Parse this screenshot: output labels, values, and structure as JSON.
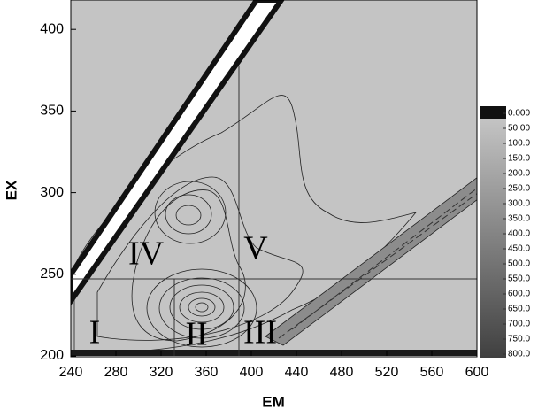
{
  "chart_data": {
    "type": "contour",
    "x_label": "EM",
    "y_label": "EX",
    "xlim": [
      240,
      600
    ],
    "ylim": [
      200,
      418
    ],
    "xticks": [
      240,
      280,
      320,
      360,
      400,
      440,
      480,
      520,
      560,
      600
    ],
    "yticks": [
      200,
      250,
      300,
      350,
      400
    ],
    "colorbar": {
      "colors": [
        "#111111",
        "#c4c4c4",
        "#404040"
      ],
      "ticks": [
        {
          "value": 0,
          "label": "0.000"
        },
        {
          "value": 50,
          "label": "50.00"
        },
        {
          "value": 100,
          "label": "100.0"
        },
        {
          "value": 150,
          "label": "150.0"
        },
        {
          "value": 200,
          "label": "200.0"
        },
        {
          "value": 250,
          "label": "250.0"
        },
        {
          "value": 300,
          "label": "300.0"
        },
        {
          "value": 350,
          "label": "350.0"
        },
        {
          "value": 400,
          "label": "400.0"
        },
        {
          "value": 450,
          "label": "450.0"
        },
        {
          "value": 500,
          "label": "500.0"
        },
        {
          "value": 550,
          "label": "550.0"
        },
        {
          "value": 600,
          "label": "600.0"
        },
        {
          "value": 650,
          "label": "650.0"
        },
        {
          "value": 700,
          "label": "700.0"
        },
        {
          "value": 750,
          "label": "750.0"
        },
        {
          "value": 800,
          "label": "800.0"
        }
      ]
    },
    "annotations": [
      "I",
      "II",
      "III",
      "IV",
      "V"
    ]
  }
}
